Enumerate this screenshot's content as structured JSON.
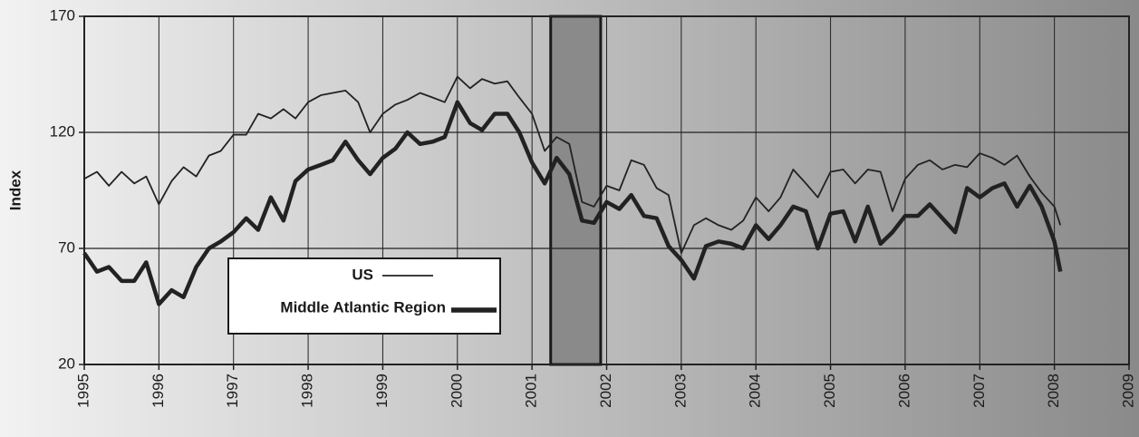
{
  "chart_data": {
    "type": "line",
    "y_label": "Index",
    "x": [
      1995.0,
      1995.17,
      1995.33,
      1995.5,
      1995.67,
      1995.83,
      1996.0,
      1996.17,
      1996.33,
      1996.5,
      1996.67,
      1996.83,
      1997.0,
      1997.17,
      1997.33,
      1997.5,
      1997.67,
      1997.83,
      1998.0,
      1998.17,
      1998.33,
      1998.5,
      1998.67,
      1998.83,
      1999.0,
      1999.17,
      1999.33,
      1999.5,
      1999.67,
      1999.83,
      2000.0,
      2000.17,
      2000.33,
      2000.5,
      2000.67,
      2000.83,
      2001.0,
      2001.17,
      2001.33,
      2001.5,
      2001.67,
      2001.83,
      2002.0,
      2002.17,
      2002.33,
      2002.5,
      2002.67,
      2002.83,
      2003.0,
      2003.17,
      2003.33,
      2003.5,
      2003.67,
      2003.83,
      2004.0,
      2004.17,
      2004.33,
      2004.5,
      2004.67,
      2004.83,
      2005.0,
      2005.17,
      2005.33,
      2005.5,
      2005.67,
      2005.83,
      2006.0,
      2006.17,
      2006.33,
      2006.5,
      2006.67,
      2006.83,
      2007.0,
      2007.17,
      2007.33,
      2007.5,
      2007.67,
      2007.83,
      2008.0,
      2008.08
    ],
    "series": [
      {
        "name": "US",
        "color": "#222222",
        "width": 1.8,
        "values": [
          100,
          103,
          97,
          103,
          98,
          101,
          89,
          99,
          105,
          101,
          110,
          112,
          119,
          119,
          128,
          126,
          130,
          126,
          133,
          136,
          137,
          138,
          133,
          120,
          128,
          132,
          134,
          137,
          135,
          133,
          144,
          139,
          143,
          141,
          142,
          135,
          128,
          112,
          118,
          115,
          90,
          88,
          97,
          95,
          108,
          106,
          96,
          93,
          68,
          80,
          83,
          80,
          78,
          82,
          92,
          86,
          92,
          104,
          98,
          92,
          103,
          104,
          98,
          104,
          103,
          86,
          100,
          106,
          108,
          104,
          106,
          105,
          111,
          109,
          106,
          110,
          101,
          94,
          88,
          80
        ]
      },
      {
        "name": "Middle Atlantic Region",
        "color": "#222222",
        "width": 4.5,
        "values": [
          68,
          60,
          62,
          56,
          56,
          64,
          46,
          52,
          49,
          62,
          70,
          73,
          77,
          83,
          78,
          92,
          82,
          99,
          104,
          106,
          108,
          116,
          108,
          102,
          109,
          113,
          120,
          115,
          116,
          118,
          133,
          124,
          121,
          128,
          128,
          120,
          107,
          98,
          109,
          102,
          82,
          81,
          90,
          87,
          93,
          84,
          83,
          71,
          65,
          57,
          71,
          73,
          72,
          70,
          80,
          74,
          80,
          88,
          86,
          70,
          85,
          86,
          73,
          88,
          72,
          77,
          84,
          84,
          89,
          83,
          77,
          96,
          92,
          96,
          98,
          88,
          97,
          88,
          73,
          60
        ]
      }
    ],
    "shaded_region": [
      2001.25,
      2001.92
    ],
    "xlim": [
      1995,
      2009
    ],
    "xticks": [
      1995,
      1996,
      1997,
      1998,
      1999,
      2000,
      2001,
      2002,
      2003,
      2004,
      2005,
      2006,
      2007,
      2008,
      2009
    ],
    "ylim": [
      20,
      170
    ],
    "yticks": [
      20,
      70,
      120,
      170
    ],
    "grid": true
  }
}
